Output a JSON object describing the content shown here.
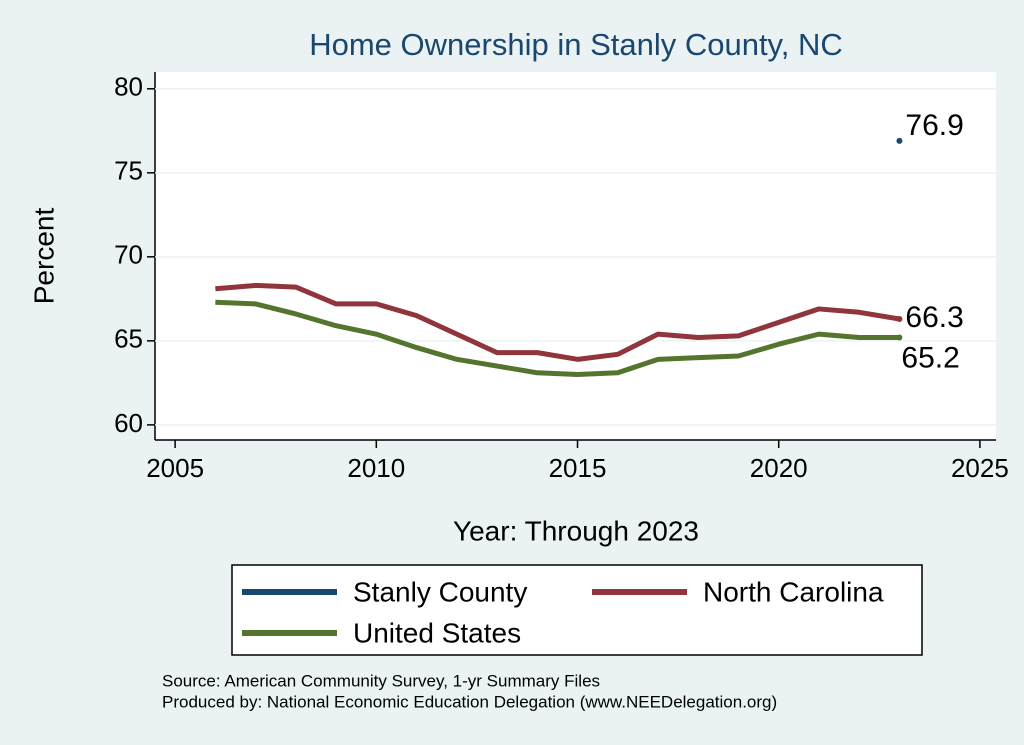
{
  "chart_data": {
    "type": "line",
    "title": "Home Ownership in Stanly County, NC",
    "x_label": "Year: Through 2023",
    "y_label": "Percent",
    "x": [
      2006,
      2007,
      2008,
      2009,
      2010,
      2011,
      2012,
      2013,
      2014,
      2015,
      2016,
      2017,
      2018,
      2019,
      2020,
      2021,
      2022,
      2023
    ],
    "series": [
      {
        "name": "Stanly County",
        "color": "#1a476f",
        "values": [
          null,
          null,
          null,
          null,
          null,
          null,
          null,
          null,
          null,
          null,
          null,
          null,
          null,
          null,
          null,
          null,
          null,
          76.9
        ]
      },
      {
        "name": "North Carolina",
        "color": "#90353b",
        "values": [
          68.1,
          68.3,
          68.2,
          67.2,
          67.2,
          66.5,
          65.4,
          64.3,
          64.3,
          63.9,
          64.2,
          65.4,
          65.2,
          65.3,
          66.1,
          66.9,
          66.7,
          66.3
        ]
      },
      {
        "name": "United States",
        "color": "#55752f",
        "values": [
          67.3,
          67.2,
          66.6,
          65.9,
          65.4,
          64.6,
          63.9,
          63.5,
          63.1,
          63.0,
          63.1,
          63.9,
          64.0,
          64.1,
          64.8,
          65.4,
          65.2,
          65.2
        ]
      }
    ],
    "xlim": [
      2004.5,
      2025.4
    ],
    "xticks": [
      2005,
      2010,
      2015,
      2020,
      2025
    ],
    "ylim": [
      59.1,
      81
    ],
    "yticks": [
      60,
      65,
      70,
      75,
      80
    ],
    "grid": true,
    "legend": "bottom",
    "notes": [
      "Source: American Community Survey, 1-yr Summary Files",
      "Produced by: National Economic Education Delegation (www.NEEDelegation.org)"
    ]
  }
}
